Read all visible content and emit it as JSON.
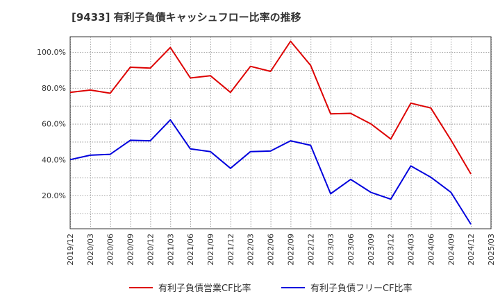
{
  "chart_data": {
    "type": "line",
    "title": "[9433]  有利子負債キャッシュフロー比率の推移",
    "xlabel": "",
    "ylabel": "",
    "x_ticks": [
      "2019/12",
      "2020/03",
      "2020/06",
      "2020/09",
      "2020/12",
      "2021/03",
      "2021/06",
      "2021/09",
      "2021/12",
      "2022/03",
      "2022/06",
      "2022/09",
      "2022/12",
      "2023/03",
      "2023/06",
      "2023/09",
      "2023/12",
      "2024/03",
      "2024/06",
      "2024/09",
      "2024/12",
      "2025/03"
    ],
    "y_ticks": [
      "20.0%",
      "40.0%",
      "60.0%",
      "80.0%",
      "100.0%"
    ],
    "y_tick_values": [
      20,
      40,
      60,
      80,
      100
    ],
    "ylim": [
      1.5,
      108.5
    ],
    "grid": true,
    "legend_position": "bottom",
    "series": [
      {
        "name": "有利子負債営業CF比率",
        "color": "#dd0000",
        "x": [
          "2019/12",
          "2020/03",
          "2020/06",
          "2020/09",
          "2020/12",
          "2021/03",
          "2021/06",
          "2021/09",
          "2021/12",
          "2022/03",
          "2022/06",
          "2022/09",
          "2022/12",
          "2023/03",
          "2023/06",
          "2023/09",
          "2023/12",
          "2024/03",
          "2024/06",
          "2024/09",
          "2024/12"
        ],
        "values": [
          77.5,
          78.8,
          77.0,
          91.5,
          91.0,
          102.5,
          85.5,
          86.8,
          77.5,
          92.0,
          89.2,
          106.0,
          92.5,
          65.5,
          65.8,
          60.0,
          51.5,
          71.5,
          68.8,
          51.0,
          32.0
        ]
      },
      {
        "name": "有利子負債フリーCF比率",
        "color": "#0000dd",
        "x": [
          "2019/12",
          "2020/03",
          "2020/06",
          "2020/09",
          "2020/12",
          "2021/03",
          "2021/06",
          "2021/09",
          "2021/12",
          "2022/03",
          "2022/06",
          "2022/09",
          "2022/12",
          "2023/03",
          "2023/06",
          "2023/09",
          "2023/12",
          "2024/03",
          "2024/06",
          "2024/09",
          "2024/12"
        ],
        "values": [
          40.0,
          42.5,
          43.0,
          50.8,
          50.5,
          62.2,
          46.0,
          44.5,
          35.2,
          44.5,
          44.8,
          50.5,
          48.0,
          21.0,
          29.0,
          21.8,
          18.0,
          36.5,
          30.2,
          21.8,
          4.0
        ]
      }
    ]
  }
}
